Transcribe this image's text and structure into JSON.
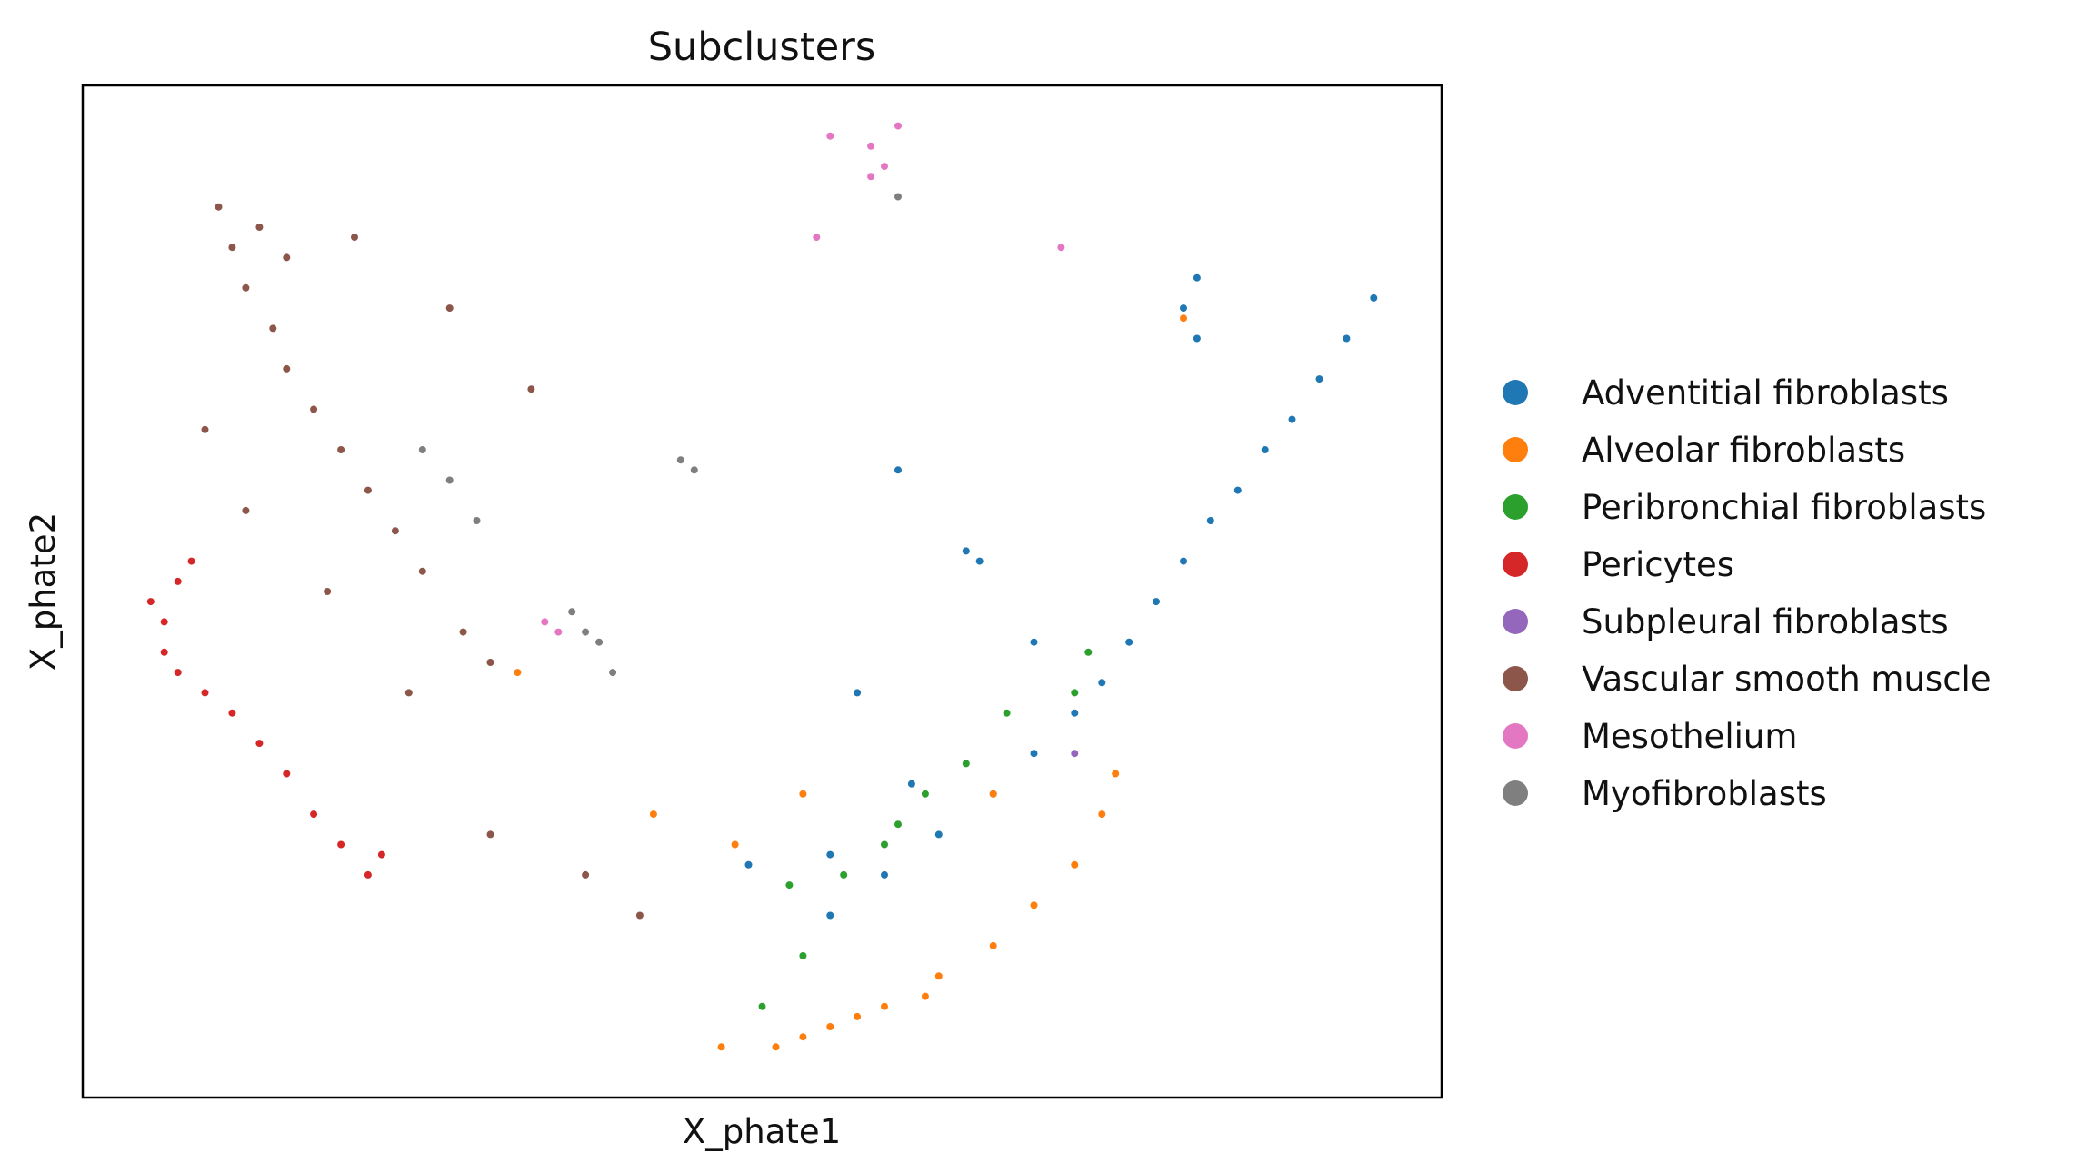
{
  "chart_data": {
    "type": "scatter",
    "title": "Subclusters",
    "xlabel": "X_phate1",
    "ylabel": "X_phate2",
    "xticks": [],
    "yticks": [],
    "grid": false,
    "legend_placement": "right",
    "xlim": [
      0,
      1
    ],
    "ylim": [
      0,
      1
    ],
    "series": [
      {
        "name": "Adventitial fibroblasts",
        "color": "#1f77b4",
        "points": [
          [
            0.95,
            0.79
          ],
          [
            0.93,
            0.75
          ],
          [
            0.91,
            0.71
          ],
          [
            0.89,
            0.67
          ],
          [
            0.87,
            0.64
          ],
          [
            0.85,
            0.6
          ],
          [
            0.83,
            0.57
          ],
          [
            0.81,
            0.53
          ],
          [
            0.79,
            0.49
          ],
          [
            0.77,
            0.45
          ],
          [
            0.75,
            0.41
          ],
          [
            0.73,
            0.38
          ],
          [
            0.7,
            0.34
          ],
          [
            0.67,
            0.3
          ],
          [
            0.63,
            0.26
          ],
          [
            0.59,
            0.22
          ],
          [
            0.55,
            0.18
          ],
          [
            0.82,
            0.81
          ],
          [
            0.81,
            0.78
          ],
          [
            0.82,
            0.75
          ],
          [
            0.65,
            0.54
          ],
          [
            0.66,
            0.53
          ],
          [
            0.61,
            0.31
          ],
          [
            0.55,
            0.24
          ],
          [
            0.49,
            0.23
          ],
          [
            0.6,
            0.62
          ],
          [
            0.57,
            0.4
          ],
          [
            0.7,
            0.45
          ]
        ]
      },
      {
        "name": "Alveolar fibroblasts",
        "color": "#ff7f0e",
        "points": [
          [
            0.47,
            0.05
          ],
          [
            0.51,
            0.05
          ],
          [
            0.55,
            0.07
          ],
          [
            0.59,
            0.09
          ],
          [
            0.63,
            0.12
          ],
          [
            0.67,
            0.15
          ],
          [
            0.7,
            0.19
          ],
          [
            0.73,
            0.23
          ],
          [
            0.75,
            0.28
          ],
          [
            0.76,
            0.32
          ],
          [
            0.53,
            0.06
          ],
          [
            0.57,
            0.08
          ],
          [
            0.62,
            0.1
          ],
          [
            0.48,
            0.25
          ],
          [
            0.42,
            0.28
          ],
          [
            0.32,
            0.42
          ],
          [
            0.81,
            0.77
          ],
          [
            0.53,
            0.3
          ],
          [
            0.67,
            0.3
          ]
        ]
      },
      {
        "name": "Peribronchial fibroblasts",
        "color": "#2ca02c",
        "points": [
          [
            0.5,
            0.09
          ],
          [
            0.53,
            0.14
          ],
          [
            0.56,
            0.22
          ],
          [
            0.59,
            0.25
          ],
          [
            0.62,
            0.3
          ],
          [
            0.65,
            0.33
          ],
          [
            0.68,
            0.38
          ],
          [
            0.74,
            0.44
          ],
          [
            0.52,
            0.21
          ],
          [
            0.6,
            0.27
          ],
          [
            0.73,
            0.4
          ]
        ]
      },
      {
        "name": "Pericytes",
        "color": "#d62728",
        "points": [
          [
            0.05,
            0.49
          ],
          [
            0.06,
            0.44
          ],
          [
            0.07,
            0.42
          ],
          [
            0.08,
            0.53
          ],
          [
            0.09,
            0.4
          ],
          [
            0.11,
            0.38
          ],
          [
            0.13,
            0.35
          ],
          [
            0.15,
            0.32
          ],
          [
            0.17,
            0.28
          ],
          [
            0.19,
            0.25
          ],
          [
            0.21,
            0.22
          ],
          [
            0.22,
            0.24
          ],
          [
            0.06,
            0.47
          ],
          [
            0.07,
            0.51
          ]
        ]
      },
      {
        "name": "Subpleural fibroblasts",
        "color": "#9467bd",
        "points": [
          [
            0.73,
            0.34
          ]
        ]
      },
      {
        "name": "Vascular smooth muscle",
        "color": "#8c564b",
        "points": [
          [
            0.1,
            0.88
          ],
          [
            0.11,
            0.84
          ],
          [
            0.12,
            0.8
          ],
          [
            0.14,
            0.76
          ],
          [
            0.15,
            0.72
          ],
          [
            0.17,
            0.68
          ],
          [
            0.19,
            0.64
          ],
          [
            0.21,
            0.6
          ],
          [
            0.23,
            0.56
          ],
          [
            0.25,
            0.52
          ],
          [
            0.28,
            0.46
          ],
          [
            0.3,
            0.43
          ],
          [
            0.13,
            0.86
          ],
          [
            0.15,
            0.83
          ],
          [
            0.09,
            0.66
          ],
          [
            0.12,
            0.58
          ],
          [
            0.18,
            0.5
          ],
          [
            0.24,
            0.4
          ],
          [
            0.3,
            0.26
          ],
          [
            0.37,
            0.22
          ],
          [
            0.41,
            0.18
          ],
          [
            0.2,
            0.85
          ],
          [
            0.27,
            0.78
          ],
          [
            0.33,
            0.7
          ]
        ]
      },
      {
        "name": "Mesothelium",
        "color": "#e377c2",
        "points": [
          [
            0.58,
            0.94
          ],
          [
            0.59,
            0.92
          ],
          [
            0.58,
            0.91
          ],
          [
            0.55,
            0.95
          ],
          [
            0.54,
            0.85
          ],
          [
            0.34,
            0.47
          ],
          [
            0.35,
            0.46
          ],
          [
            0.72,
            0.84
          ],
          [
            0.6,
            0.96
          ]
        ]
      },
      {
        "name": "Myofibroblasts",
        "color": "#7f7f7f",
        "points": [
          [
            0.44,
            0.63
          ],
          [
            0.45,
            0.62
          ],
          [
            0.36,
            0.48
          ],
          [
            0.37,
            0.46
          ],
          [
            0.38,
            0.45
          ],
          [
            0.25,
            0.64
          ],
          [
            0.27,
            0.61
          ],
          [
            0.29,
            0.57
          ],
          [
            0.39,
            0.42
          ],
          [
            0.6,
            0.89
          ]
        ]
      }
    ]
  }
}
